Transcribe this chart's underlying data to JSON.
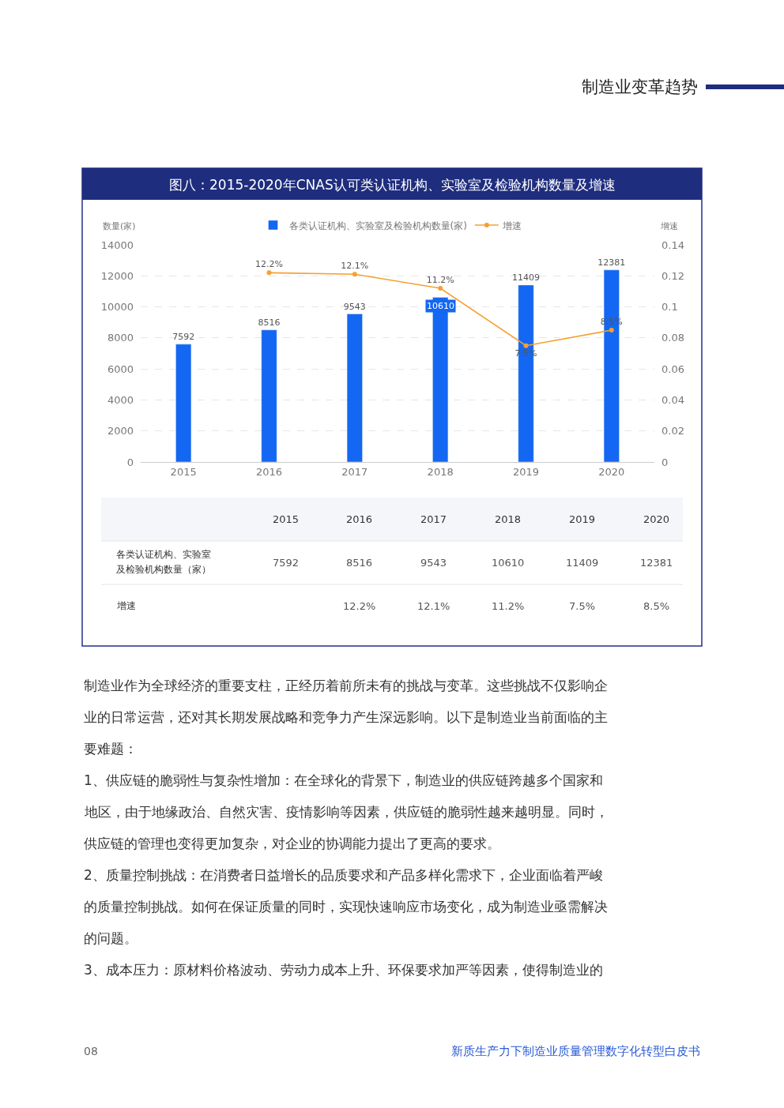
{
  "chart_data": {
    "type": "bar",
    "title": "图八：2015-2020年CNAS认可类认证机构、实验室及检验机构数量及增速",
    "categories": [
      "2015",
      "2016",
      "2017",
      "2018",
      "2019",
      "2020"
    ],
    "series": [
      {
        "name": "各类认证机构、实验室及检验机构数量(家)",
        "color": "#1367f2",
        "values": [
          7592,
          8516,
          9543,
          10610,
          11409,
          12381
        ],
        "value_labels": [
          "7592",
          "8516",
          "9543",
          "10610",
          "11409",
          "12381"
        ]
      },
      {
        "name": "增速",
        "type": "line",
        "axis": "y2",
        "color": "#f5a030",
        "marker": "circle",
        "values": [
          null,
          0.122,
          0.121,
          0.112,
          0.075,
          0.085
        ],
        "value_labels": [
          null,
          "12.2%",
          "12.1%",
          "11.2%",
          "7.5%",
          "8.5%"
        ]
      }
    ],
    "ylabel": "数量(家)",
    "y2label": "增速",
    "ylim": [
      0,
      14000
    ],
    "yticks": [
      0,
      2000,
      4000,
      6000,
      8000,
      10000,
      12000,
      14000
    ],
    "y2lim": [
      0,
      0.14
    ],
    "y2ticks": [
      0,
      0.02,
      0.04,
      0.06,
      0.08,
      0.1,
      0.12,
      0.14
    ],
    "grid": "y",
    "legend": "top",
    "annotations": [
      "制造业变革趋势",
      "新质生产力下制造业质量管理数字化转型白皮书",
      "08",
      "各类认证机构、实验室",
      "及检验机构数量（家）",
      "增速",
      "制造业作为全球经济的重要支柱，正经历着前所未有的挑战与变革。这些挑战不仅影响企",
      "业的日常运营，还对其长期发展战略和竞争力产生深远影响。以下是制造业当前面临的主",
      "要难题：",
      "1、供应链的脆弱性与复杂性增加：在全球化的背景下，制造业的供应链跨越多个国家和",
      "地区，由于地缘政治、自然灾害、疫情影响等因素，供应链的脆弱性越来越明显。同时，",
      "供应链的管理也变得更加复杂，对企业的协调能力提出了更高的要求。",
      "2、质量控制挑战：在消费者日益增长的品质要求和产品多样化需求下，企业面临着严峻",
      "的质量控制挑战。如何在保证质量的同时，实现快速响应市场变化，成为制造业亟需解决",
      "的问题。",
      "3、成本压力：原材料价格波动、劳动力成本上升、环保要求加严等因素，使得制造业的"
    ]
  }
}
